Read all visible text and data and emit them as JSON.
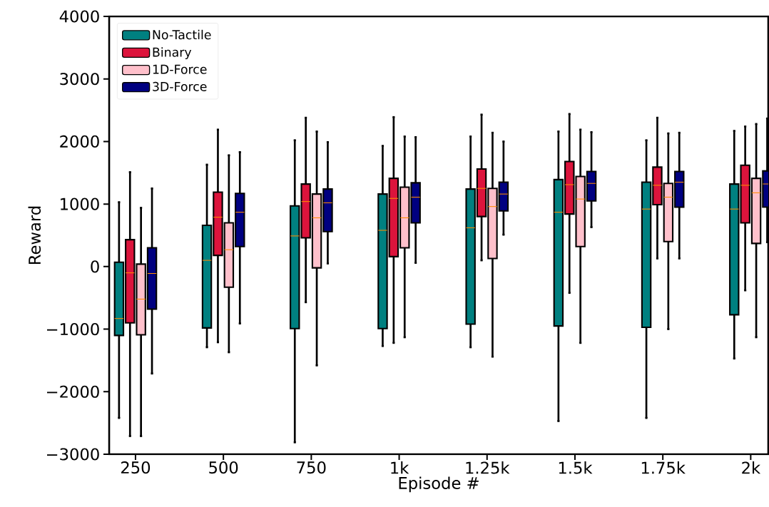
{
  "chart_data": {
    "type": "box",
    "xlabel": "Episode #",
    "ylabel": "Reward",
    "categories": [
      "250",
      "500",
      "750",
      "1k",
      "1.25k",
      "1.5k",
      "1.75k",
      "2k"
    ],
    "ylim": [
      -3000,
      4000
    ],
    "yticks": [
      {
        "value": -3000,
        "label": "−3000"
      },
      {
        "value": -2000,
        "label": "−2000"
      },
      {
        "value": -1000,
        "label": "−1000"
      },
      0,
      1000,
      2000,
      3000,
      4000
    ],
    "legend": "top left",
    "series": [
      {
        "name": "No-Tactile",
        "color": "#008080",
        "boxes": [
          {
            "low": -2420,
            "q1": -1100,
            "median": -830,
            "q3": 70,
            "high": 1030
          },
          {
            "low": -1290,
            "q1": -980,
            "median": 100,
            "q3": 660,
            "high": 1630
          },
          {
            "low": -2810,
            "q1": -990,
            "median": 490,
            "q3": 970,
            "high": 2020
          },
          {
            "low": -1270,
            "q1": -990,
            "median": 580,
            "q3": 1160,
            "high": 1930
          },
          {
            "low": -1290,
            "q1": -920,
            "median": 620,
            "q3": 1240,
            "high": 2080
          },
          {
            "low": -2470,
            "q1": -950,
            "median": 870,
            "q3": 1390,
            "high": 2160
          },
          {
            "low": -2420,
            "q1": -970,
            "median": 920,
            "q3": 1350,
            "high": 2020
          },
          {
            "low": -1470,
            "q1": -770,
            "median": 920,
            "q3": 1320,
            "high": 2170
          }
        ]
      },
      {
        "name": "Binary",
        "color": "#dc143c",
        "boxes": [
          {
            "low": -2710,
            "q1": -900,
            "median": -100,
            "q3": 430,
            "high": 1510
          },
          {
            "low": -1210,
            "q1": 180,
            "median": 790,
            "q3": 1190,
            "high": 2190
          },
          {
            "low": -570,
            "q1": 460,
            "median": 1040,
            "q3": 1320,
            "high": 2380
          },
          {
            "low": -1220,
            "q1": 160,
            "median": 1090,
            "q3": 1410,
            "high": 2390
          },
          {
            "low": 100,
            "q1": 800,
            "median": 1250,
            "q3": 1560,
            "high": 2430
          },
          {
            "low": -420,
            "q1": 840,
            "median": 1310,
            "q3": 1680,
            "high": 2440
          },
          {
            "low": 130,
            "q1": 990,
            "median": 1300,
            "q3": 1590,
            "high": 2380
          },
          {
            "low": -380,
            "q1": 700,
            "median": 1300,
            "q3": 1620,
            "high": 2240
          }
        ]
      },
      {
        "name": "1D-Force",
        "color": "#ffc0cb",
        "boxes": [
          {
            "low": -2710,
            "q1": -1090,
            "median": -520,
            "q3": 40,
            "high": 940
          },
          {
            "low": -1370,
            "q1": -330,
            "median": 270,
            "q3": 700,
            "high": 1780
          },
          {
            "low": -1580,
            "q1": -20,
            "median": 780,
            "q3": 1160,
            "high": 2160
          },
          {
            "low": -1130,
            "q1": 300,
            "median": 780,
            "q3": 1270,
            "high": 2080
          },
          {
            "low": -1440,
            "q1": 130,
            "median": 960,
            "q3": 1250,
            "high": 2140
          },
          {
            "low": -1220,
            "q1": 320,
            "median": 1080,
            "q3": 1440,
            "high": 2190
          },
          {
            "low": -1000,
            "q1": 400,
            "median": 1110,
            "q3": 1330,
            "high": 2130
          },
          {
            "low": -1130,
            "q1": 370,
            "median": 1180,
            "q3": 1410,
            "high": 2280
          }
        ]
      },
      {
        "name": "3D-Force",
        "color": "#000080",
        "boxes": [
          {
            "low": -1710,
            "q1": -680,
            "median": -110,
            "q3": 300,
            "high": 1250
          },
          {
            "low": -910,
            "q1": 320,
            "median": 870,
            "q3": 1170,
            "high": 1830
          },
          {
            "low": 50,
            "q1": 560,
            "median": 1020,
            "q3": 1240,
            "high": 1990
          },
          {
            "low": 60,
            "q1": 700,
            "median": 1110,
            "q3": 1340,
            "high": 2070
          },
          {
            "low": 510,
            "q1": 890,
            "median": 1160,
            "q3": 1350,
            "high": 2000
          },
          {
            "low": 630,
            "q1": 1050,
            "median": 1330,
            "q3": 1520,
            "high": 2150
          },
          {
            "low": 130,
            "q1": 950,
            "median": 1350,
            "q3": 1520,
            "high": 2140
          },
          {
            "low": 390,
            "q1": 950,
            "median": 1320,
            "q3": 1530,
            "high": 2370
          }
        ]
      }
    ]
  }
}
